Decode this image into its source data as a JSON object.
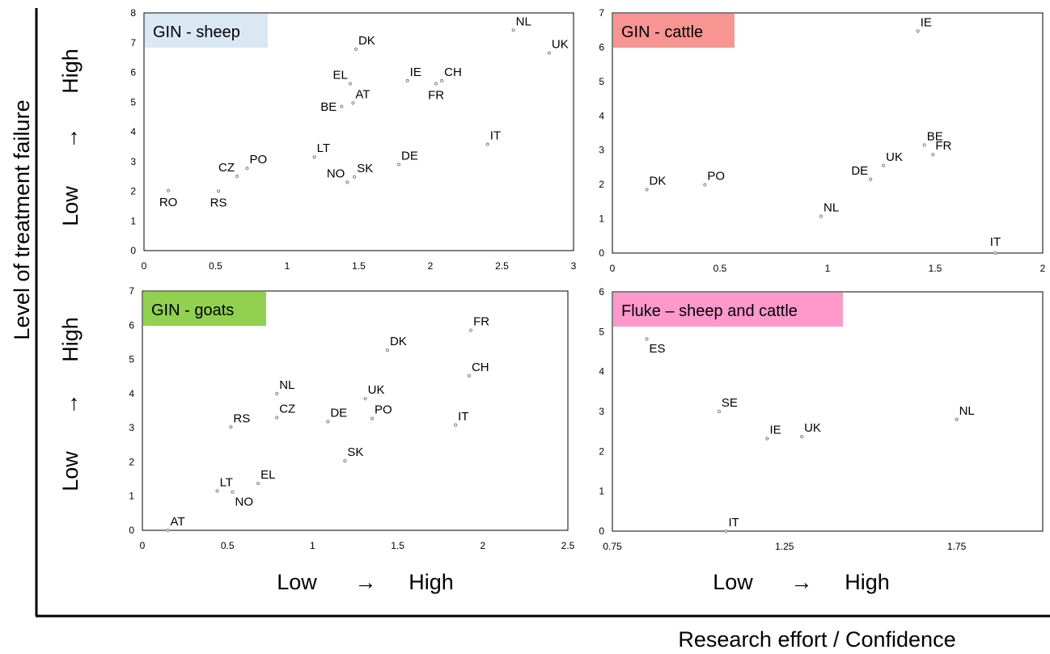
{
  "figure": {
    "y_axis_title": "Level of treatment failure",
    "x_axis_title": "Research effort / Confidence",
    "left_labels": {
      "top": {
        "high": "High",
        "arrow": "→",
        "low": "Low"
      },
      "bottom": {
        "high": "High",
        "arrow": "→",
        "low": "Low"
      }
    },
    "bottom_labels": {
      "left": {
        "low": "Low",
        "arrow": "→",
        "high": "High"
      },
      "right": {
        "low": "Low",
        "arrow": "→",
        "high": "High"
      }
    },
    "axis_line_color": "#000000"
  },
  "chart_data": [
    {
      "type": "scatter",
      "panel_label": "GIN - sheep",
      "label_color": "#dae8f4",
      "marker_color": "#7f7f7f",
      "xlim": [
        0,
        3
      ],
      "ylim": [
        0,
        8
      ],
      "xticks": [
        0,
        0.5,
        1,
        1.5,
        2,
        2.5,
        3
      ],
      "xtick_labels": [
        "0",
        "0.5",
        "1",
        "1.5",
        "2",
        "2.5",
        "3"
      ],
      "yticks": [
        0,
        1,
        2,
        3,
        4,
        5,
        6,
        7,
        8
      ],
      "ytick_labels": [
        "0",
        "1",
        "2",
        "3",
        "4",
        "5",
        "6",
        "7",
        "8"
      ],
      "points": [
        {
          "label": "NL",
          "x": 2.58,
          "y": 7.42,
          "pos": "ne"
        },
        {
          "label": "UK",
          "x": 2.83,
          "y": 6.65,
          "pos": "ne"
        },
        {
          "label": "DK",
          "x": 1.48,
          "y": 6.78,
          "pos": "ne"
        },
        {
          "label": "EL",
          "x": 1.44,
          "y": 5.62,
          "pos": "nw"
        },
        {
          "label": "IE",
          "x": 1.84,
          "y": 5.72,
          "pos": "ne"
        },
        {
          "label": "CH",
          "x": 2.08,
          "y": 5.72,
          "pos": "ne"
        },
        {
          "label": "FR",
          "x": 2.04,
          "y": 5.62,
          "pos": "s"
        },
        {
          "label": "AT",
          "x": 1.46,
          "y": 4.97,
          "pos": "ne"
        },
        {
          "label": "BE",
          "x": 1.38,
          "y": 4.85,
          "pos": "w"
        },
        {
          "label": "IT",
          "x": 2.4,
          "y": 3.58,
          "pos": "ne"
        },
        {
          "label": "LT",
          "x": 1.19,
          "y": 3.15,
          "pos": "ne"
        },
        {
          "label": "DE",
          "x": 1.78,
          "y": 2.9,
          "pos": "ne"
        },
        {
          "label": "PO",
          "x": 0.72,
          "y": 2.77,
          "pos": "ne"
        },
        {
          "label": "SK",
          "x": 1.47,
          "y": 2.48,
          "pos": "ne"
        },
        {
          "label": "NO",
          "x": 1.42,
          "y": 2.3,
          "pos": "nw"
        },
        {
          "label": "CZ",
          "x": 0.65,
          "y": 2.5,
          "pos": "nw"
        },
        {
          "label": "RO",
          "x": 0.17,
          "y": 2.02,
          "pos": "s"
        },
        {
          "label": "RS",
          "x": 0.52,
          "y": 2.0,
          "pos": "s"
        }
      ]
    },
    {
      "type": "scatter",
      "panel_label": "GIN - cattle",
      "label_color": "#f79593",
      "marker_color": "#7f7f7f",
      "xlim": [
        0,
        2
      ],
      "ylim": [
        0,
        7
      ],
      "xticks": [
        0,
        0.5,
        1,
        1.5,
        2
      ],
      "xtick_labels": [
        "0",
        "0.5",
        "1",
        "1.5",
        "2"
      ],
      "yticks": [
        0,
        1,
        2,
        3,
        4,
        5,
        6,
        7
      ],
      "ytick_labels": [
        "0",
        "1",
        "2",
        "3",
        "4",
        "5",
        "6",
        "7"
      ],
      "points": [
        {
          "label": "IE",
          "x": 1.42,
          "y": 6.47,
          "pos": "ne"
        },
        {
          "label": "BE",
          "x": 1.45,
          "y": 3.15,
          "pos": "ne"
        },
        {
          "label": "FR",
          "x": 1.49,
          "y": 2.87,
          "pos": "ne"
        },
        {
          "label": "UK",
          "x": 1.26,
          "y": 2.55,
          "pos": "ne"
        },
        {
          "label": "DE",
          "x": 1.2,
          "y": 2.15,
          "pos": "nw"
        },
        {
          "label": "PO",
          "x": 0.43,
          "y": 1.99,
          "pos": "ne"
        },
        {
          "label": "DK",
          "x": 0.16,
          "y": 1.85,
          "pos": "ne"
        },
        {
          "label": "NL",
          "x": 0.97,
          "y": 1.07,
          "pos": "ne"
        },
        {
          "label": "IT",
          "x": 1.78,
          "y": 0.0,
          "pos": "n"
        }
      ]
    },
    {
      "type": "scatter",
      "panel_label": "GIN - goats",
      "label_color": "#92d050",
      "marker_color": "#7f7f7f",
      "xlim": [
        0,
        2.5
      ],
      "ylim": [
        0,
        7
      ],
      "xticks": [
        0,
        0.5,
        1,
        1.5,
        2,
        2.5
      ],
      "xtick_labels": [
        "0",
        "0.5",
        "1",
        "1.5",
        "2",
        "2.5"
      ],
      "yticks": [
        0,
        1,
        2,
        3,
        4,
        5,
        6,
        7
      ],
      "ytick_labels": [
        "0",
        "1",
        "2",
        "3",
        "4",
        "5",
        "6",
        "7"
      ],
      "points": [
        {
          "label": "FR",
          "x": 1.93,
          "y": 5.85,
          "pos": "ne"
        },
        {
          "label": "DK",
          "x": 1.44,
          "y": 5.27,
          "pos": "ne"
        },
        {
          "label": "CH",
          "x": 1.92,
          "y": 4.52,
          "pos": "ne"
        },
        {
          "label": "NL",
          "x": 0.79,
          "y": 4.0,
          "pos": "ne"
        },
        {
          "label": "UK",
          "x": 1.31,
          "y": 3.85,
          "pos": "ne"
        },
        {
          "label": "CZ",
          "x": 0.79,
          "y": 3.3,
          "pos": "ne"
        },
        {
          "label": "PO",
          "x": 1.35,
          "y": 3.27,
          "pos": "ne"
        },
        {
          "label": "DE",
          "x": 1.09,
          "y": 3.18,
          "pos": "ne"
        },
        {
          "label": "IT",
          "x": 1.84,
          "y": 3.08,
          "pos": "ne"
        },
        {
          "label": "RS",
          "x": 0.52,
          "y": 3.02,
          "pos": "ne"
        },
        {
          "label": "SK",
          "x": 1.19,
          "y": 2.03,
          "pos": "ne"
        },
        {
          "label": "EL",
          "x": 0.68,
          "y": 1.37,
          "pos": "ne"
        },
        {
          "label": "LT",
          "x": 0.44,
          "y": 1.15,
          "pos": "ne"
        },
        {
          "label": "NO",
          "x": 0.53,
          "y": 1.12,
          "pos": "se"
        },
        {
          "label": "AT",
          "x": 0.15,
          "y": 0.0,
          "pos": "ne"
        }
      ]
    },
    {
      "type": "scatter",
      "panel_label": "Fluke – sheep and cattle",
      "label_color": "#ff99cc",
      "marker_color": "#7f7f7f",
      "xlim": [
        0.75,
        2.0
      ],
      "ylim": [
        0,
        6
      ],
      "xticks": [
        0.75,
        1.25,
        1.75
      ],
      "xtick_labels": [
        "0.75",
        "1.25",
        "1.75"
      ],
      "yticks": [
        0,
        1,
        2,
        3,
        4,
        5,
        6
      ],
      "ytick_labels": [
        "0",
        "1",
        "2",
        "3",
        "4",
        "5",
        "6"
      ],
      "points": [
        {
          "label": "ES",
          "x": 0.85,
          "y": 4.82,
          "pos": "se"
        },
        {
          "label": "SE",
          "x": 1.06,
          "y": 3.0,
          "pos": "ne"
        },
        {
          "label": "IE",
          "x": 1.2,
          "y": 2.32,
          "pos": "ne"
        },
        {
          "label": "UK",
          "x": 1.3,
          "y": 2.37,
          "pos": "ne"
        },
        {
          "label": "NL",
          "x": 1.75,
          "y": 2.8,
          "pos": "ne"
        },
        {
          "label": "IT",
          "x": 1.08,
          "y": 0.0,
          "pos": "ne"
        }
      ]
    }
  ]
}
